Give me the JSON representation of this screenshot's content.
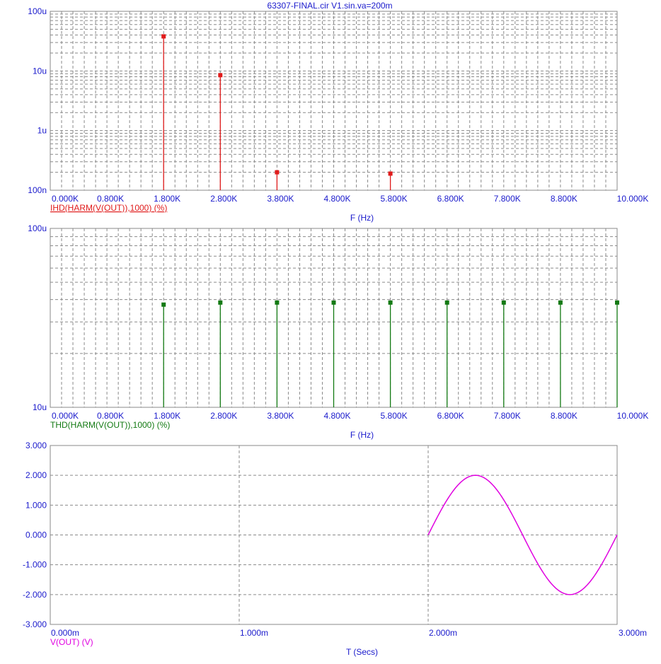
{
  "title": "63307-FINAL.cir V1.sin.va=200m",
  "colors": {
    "axis_text": "#1a1acc",
    "ihd": "#e01b1b",
    "thd": "#137a13",
    "vout": "#e000e0",
    "grid": "#8a8a8a",
    "frame": "#8a8a8a"
  },
  "chart_data": [
    {
      "type": "scatter",
      "style": "stem",
      "scale": "log-y",
      "series": [
        {
          "name": "IHD(HARM(V(OUT)),1000) (%)",
          "x": [
            2000,
            3000,
            4000,
            6000
          ],
          "y": [
            3.8e-05,
            8.5e-06,
            2e-07,
            1.9e-07
          ]
        }
      ],
      "xlabel": "F (Hz)",
      "ylabel": "",
      "xlim": [
        0,
        10000
      ],
      "ylim": [
        1e-07,
        0.0001
      ],
      "x_ticks": [
        "0.000K",
        "0.800K",
        "1.800K",
        "2.800K",
        "3.800K",
        "4.800K",
        "5.800K",
        "6.800K",
        "7.800K",
        "8.800K",
        "10.000K"
      ],
      "x_tick_values": [
        0,
        800,
        1800,
        2800,
        3800,
        4800,
        5800,
        6800,
        7800,
        8800,
        10000
      ],
      "y_ticks": [
        "100u",
        "10u",
        "1u",
        "100n"
      ],
      "y_tick_values": [
        0.0001,
        1e-05,
        1e-06,
        1e-07
      ],
      "grid": true
    },
    {
      "type": "scatter",
      "style": "stem",
      "scale": "log-y",
      "series": [
        {
          "name": "THD(HARM(V(OUT)),1000) (%)",
          "x": [
            2000,
            3000,
            4000,
            5000,
            6000,
            7000,
            8000,
            9000,
            10000
          ],
          "y": [
            3.75e-05,
            3.85e-05,
            3.85e-05,
            3.85e-05,
            3.85e-05,
            3.85e-05,
            3.85e-05,
            3.85e-05,
            3.85e-05
          ]
        }
      ],
      "xlabel": "F (Hz)",
      "ylabel": "",
      "xlim": [
        0,
        10000
      ],
      "ylim": [
        1e-05,
        0.0001
      ],
      "x_ticks": [
        "0.000K",
        "0.800K",
        "1.800K",
        "2.800K",
        "3.800K",
        "4.800K",
        "5.800K",
        "6.800K",
        "7.800K",
        "8.800K",
        "10.000K"
      ],
      "x_tick_values": [
        0,
        800,
        1800,
        2800,
        3800,
        4800,
        5800,
        6800,
        7800,
        8800,
        10000
      ],
      "y_ticks": [
        "100u",
        "10u"
      ],
      "y_tick_values": [
        0.0001,
        1e-05
      ],
      "grid": true
    },
    {
      "type": "line",
      "series": [
        {
          "name": "V(OUT) (V)",
          "x": [
            0.002,
            0.002125,
            0.00225,
            0.002375,
            0.0025,
            0.002625,
            0.00275,
            0.002875,
            0.003
          ],
          "y": [
            0.0,
            1.414,
            2.0,
            1.414,
            0.0,
            -1.414,
            -2.0,
            -1.414,
            0.0
          ]
        }
      ],
      "xlabel": "T (Secs)",
      "ylabel": "",
      "xlim": [
        0,
        0.003
      ],
      "ylim": [
        -3,
        3
      ],
      "x_ticks": [
        "0.000m",
        "1.000m",
        "2.000m",
        "3.000m"
      ],
      "x_tick_values": [
        0,
        0.001,
        0.002,
        0.003
      ],
      "y_ticks": [
        "3.000",
        "2.000",
        "1.000",
        "0.000",
        "-1.000",
        "-2.000",
        "-3.000"
      ],
      "y_tick_values": [
        3,
        2,
        1,
        0,
        -1,
        -2,
        -3
      ],
      "grid": true
    }
  ]
}
